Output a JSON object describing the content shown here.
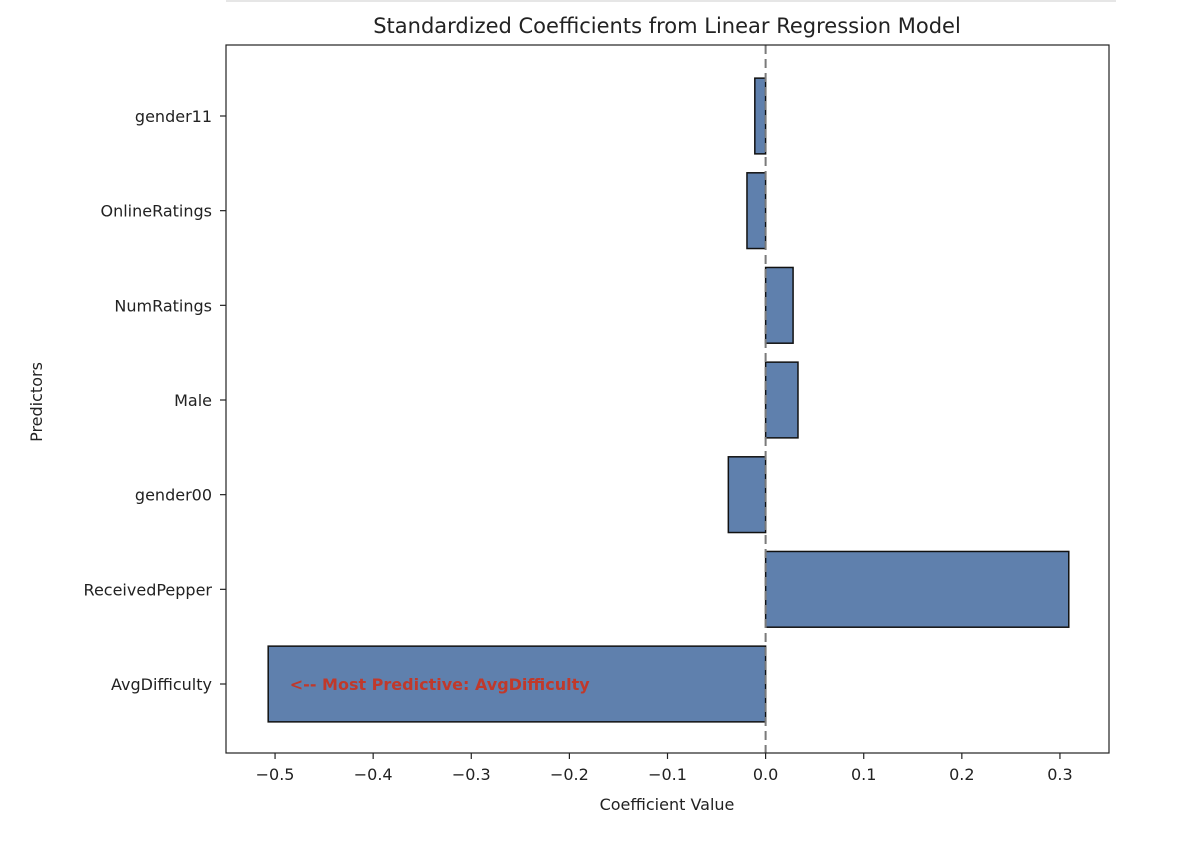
{
  "chart_data": {
    "type": "bar",
    "orientation": "horizontal",
    "title": "Standardized Coefficients from Linear Regression Model",
    "xlabel": "Coefficient Value",
    "ylabel": "Predictors",
    "categories": [
      "gender11",
      "OnlineRatings",
      "NumRatings",
      "Male",
      "gender00",
      "ReceivedPepper",
      "AvgDifficulty"
    ],
    "values": [
      -0.011,
      -0.019,
      0.028,
      0.033,
      -0.038,
      0.309,
      -0.507
    ],
    "xlim": [
      -0.55,
      0.35
    ],
    "xticks": [
      -0.5,
      -0.4,
      -0.3,
      -0.2,
      -0.1,
      0.0,
      0.1,
      0.2,
      0.3
    ],
    "xtick_labels": [
      "−0.5",
      "−0.4",
      "−0.3",
      "−0.2",
      "−0.1",
      "0.0",
      "0.1",
      "0.2",
      "0.3"
    ],
    "zero_line": "dashed",
    "grid": false,
    "bar_color": "#5f80ad",
    "bar_edge_color": "#111111",
    "annotation": {
      "text": "<-- Most Predictive: AvgDifficulty",
      "color": "#c0392b",
      "category": "AvgDifficulty",
      "x": -0.485
    }
  }
}
